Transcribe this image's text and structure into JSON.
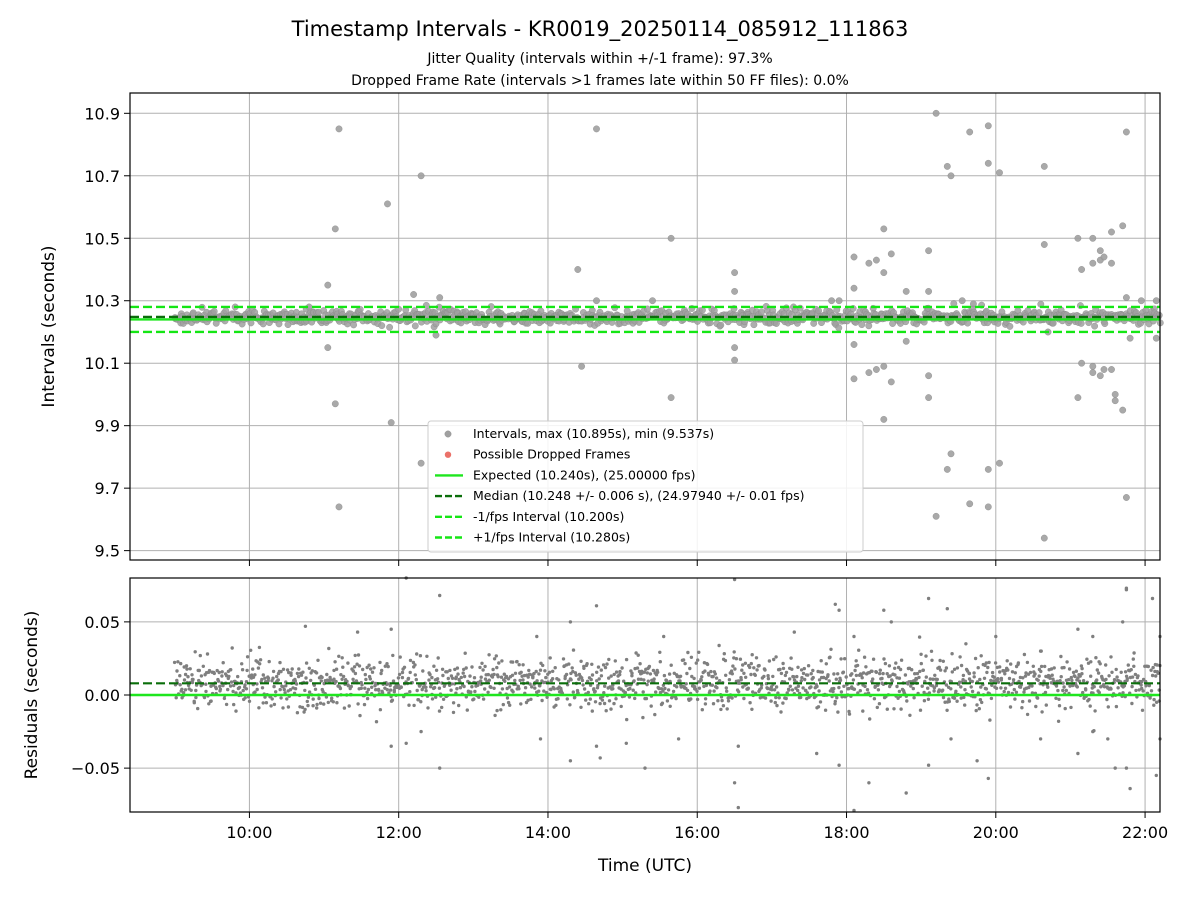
{
  "figure": {
    "title": "Timestamp Intervals - KR0019_20250114_085912_111863",
    "subtitle_1": "Jitter Quality (intervals within +/-1 frame): 97.3%",
    "subtitle_2": "Dropped Frame Rate (intervals >1 frames late within 50 FF files): 0.0%"
  },
  "colors": {
    "intervals": "#a0a0a0",
    "residuals": "#7f7f7f",
    "dropped": "#e8584f",
    "expected": "#1ee61e",
    "median": "#0a6e0a",
    "fps_interval": "#14e614",
    "grid": "#b0b0b0"
  },
  "chart_data": [
    {
      "type": "scatter",
      "panel": "top",
      "ylabel": "Intervals (seconds)",
      "xlabel": "",
      "xlim": [
        8.4,
        22.2
      ],
      "ylim": [
        9.47,
        10.965
      ],
      "xticks": [
        "10:00",
        "12:00",
        "14:00",
        "16:00",
        "18:00",
        "20:00",
        "22:00"
      ],
      "yticks": [
        "10.9",
        "10.7",
        "10.5",
        "10.3",
        "10.1",
        "9.9",
        "9.7",
        "9.5"
      ],
      "grid": true,
      "legend_position": "lower center",
      "legend": [
        "Intervals, max (10.895s), min (9.537s)",
        "Possible Dropped Frames",
        "Expected (10.240s), (25.00000 fps)",
        "Median (10.248 +/- 0.006 s), (24.97940 +/- 0.01 fps)",
        "-1/fps Interval (10.200s)",
        "+1/fps Interval (10.280s)"
      ],
      "expected": 10.24,
      "median": 10.248,
      "minus_interval": 10.2,
      "plus_interval": 10.28,
      "x_start": 9.0,
      "x_end": 22.2,
      "outliers": [
        [
          9.1,
          10.25
        ],
        [
          10.8,
          10.28
        ],
        [
          11.05,
          10.35
        ],
        [
          11.05,
          10.15
        ],
        [
          11.15,
          10.53
        ],
        [
          11.15,
          9.97
        ],
        [
          11.2,
          10.85
        ],
        [
          11.2,
          9.64
        ],
        [
          11.85,
          10.61
        ],
        [
          11.9,
          9.91
        ],
        [
          12.2,
          10.32
        ],
        [
          12.3,
          10.7
        ],
        [
          12.3,
          9.78
        ],
        [
          12.55,
          10.31
        ],
        [
          12.5,
          10.19
        ],
        [
          14.4,
          10.4
        ],
        [
          14.45,
          10.09
        ],
        [
          14.65,
          10.85
        ],
        [
          14.65,
          10.3
        ],
        [
          15.4,
          10.3
        ],
        [
          15.65,
          10.5
        ],
        [
          15.65,
          9.99
        ],
        [
          16.5,
          10.39
        ],
        [
          16.5,
          10.33
        ],
        [
          16.5,
          10.15
        ],
        [
          16.5,
          10.11
        ],
        [
          17.8,
          10.3
        ],
        [
          17.9,
          10.3
        ],
        [
          18.1,
          10.44
        ],
        [
          18.1,
          10.34
        ],
        [
          18.1,
          10.05
        ],
        [
          18.1,
          10.16
        ],
        [
          18.3,
          10.42
        ],
        [
          18.3,
          10.07
        ],
        [
          18.4,
          10.43
        ],
        [
          18.4,
          10.08
        ],
        [
          18.5,
          10.53
        ],
        [
          18.5,
          10.39
        ],
        [
          18.5,
          10.09
        ],
        [
          18.5,
          9.92
        ],
        [
          18.6,
          10.45
        ],
        [
          18.6,
          10.04
        ],
        [
          18.8,
          10.33
        ],
        [
          18.8,
          10.17
        ],
        [
          19.1,
          10.46
        ],
        [
          19.1,
          10.33
        ],
        [
          19.1,
          10.06
        ],
        [
          19.1,
          9.99
        ],
        [
          19.2,
          10.9
        ],
        [
          19.2,
          9.61
        ],
        [
          19.35,
          10.73
        ],
        [
          19.35,
          9.76
        ],
        [
          19.4,
          10.7
        ],
        [
          19.4,
          9.81
        ],
        [
          19.55,
          10.3
        ],
        [
          19.65,
          10.84
        ],
        [
          19.65,
          9.65
        ],
        [
          19.7,
          10.29
        ],
        [
          19.9,
          10.86
        ],
        [
          19.9,
          10.74
        ],
        [
          19.9,
          9.64
        ],
        [
          19.9,
          9.76
        ],
        [
          20.05,
          10.71
        ],
        [
          20.05,
          9.78
        ],
        [
          20.65,
          10.73
        ],
        [
          20.65,
          10.48
        ],
        [
          20.65,
          9.54
        ],
        [
          20.7,
          10.2
        ],
        [
          21.1,
          10.5
        ],
        [
          21.1,
          9.99
        ],
        [
          21.15,
          10.4
        ],
        [
          21.15,
          10.1
        ],
        [
          21.3,
          10.42
        ],
        [
          21.3,
          10.5
        ],
        [
          21.3,
          10.09
        ],
        [
          21.3,
          10.07
        ],
        [
          21.4,
          10.46
        ],
        [
          21.4,
          10.43
        ],
        [
          21.4,
          10.06
        ],
        [
          21.45,
          10.44
        ],
        [
          21.45,
          10.08
        ],
        [
          21.55,
          10.52
        ],
        [
          21.55,
          10.42
        ],
        [
          21.55,
          10.08
        ],
        [
          21.6,
          10.0
        ],
        [
          21.6,
          9.98
        ],
        [
          21.7,
          10.54
        ],
        [
          21.7,
          9.95
        ],
        [
          21.75,
          10.84
        ],
        [
          21.75,
          9.67
        ],
        [
          21.75,
          10.31
        ],
        [
          21.8,
          10.18
        ],
        [
          21.95,
          10.3
        ],
        [
          22.15,
          10.3
        ],
        [
          22.15,
          10.18
        ]
      ]
    },
    {
      "type": "scatter",
      "panel": "bottom",
      "ylabel": "Residuals (seconds)",
      "xlabel": "Time (UTC)",
      "xlim": [
        8.4,
        22.2
      ],
      "ylim": [
        -0.08,
        0.08
      ],
      "xticks": [
        "10:00",
        "12:00",
        "14:00",
        "16:00",
        "18:00",
        "20:00",
        "22:00"
      ],
      "yticks": [
        "0.05",
        "0.00",
        "−0.05"
      ],
      "grid": true,
      "expected": 0.0,
      "median": 0.008,
      "outliers": [
        [
          10.75,
          0.047
        ],
        [
          11.45,
          0.043
        ],
        [
          11.9,
          -0.035
        ],
        [
          11.9,
          0.045
        ],
        [
          12.1,
          0.08
        ],
        [
          12.1,
          -0.033
        ],
        [
          12.3,
          -0.025
        ],
        [
          12.55,
          0.068
        ],
        [
          12.55,
          -0.05
        ],
        [
          13.85,
          0.04
        ],
        [
          13.9,
          -0.03
        ],
        [
          14.3,
          0.05
        ],
        [
          14.3,
          -0.045
        ],
        [
          14.65,
          0.061
        ],
        [
          14.65,
          -0.035
        ],
        [
          14.7,
          -0.043
        ],
        [
          15.05,
          -0.033
        ],
        [
          15.3,
          -0.05
        ],
        [
          15.55,
          0.04
        ],
        [
          15.75,
          -0.03
        ],
        [
          16.5,
          0.079
        ],
        [
          16.5,
          -0.06
        ],
        [
          16.55,
          -0.077
        ],
        [
          16.55,
          -0.035
        ],
        [
          17.3,
          0.043
        ],
        [
          17.6,
          -0.04
        ],
        [
          17.85,
          0.062
        ],
        [
          17.9,
          -0.048
        ],
        [
          17.9,
          0.058
        ],
        [
          18.1,
          0.04
        ],
        [
          18.1,
          -0.079
        ],
        [
          18.3,
          -0.06
        ],
        [
          18.5,
          0.058
        ],
        [
          18.6,
          0.05
        ],
        [
          18.8,
          -0.067
        ],
        [
          19.1,
          0.066
        ],
        [
          19.1,
          -0.048
        ],
        [
          19.35,
          0.059
        ],
        [
          19.4,
          -0.03
        ],
        [
          19.6,
          0.035
        ],
        [
          19.75,
          -0.045
        ],
        [
          19.9,
          -0.057
        ],
        [
          20.0,
          0.04
        ],
        [
          20.6,
          0.03
        ],
        [
          20.6,
          -0.03
        ],
        [
          21.1,
          0.045
        ],
        [
          21.1,
          -0.04
        ],
        [
          21.3,
          0.04
        ],
        [
          21.3,
          -0.025
        ],
        [
          21.5,
          -0.03
        ],
        [
          21.6,
          -0.05
        ],
        [
          21.7,
          0.05
        ],
        [
          21.75,
          0.072
        ],
        [
          21.75,
          0.073
        ],
        [
          21.75,
          -0.05
        ],
        [
          21.8,
          -0.064
        ],
        [
          22.1,
          0.066
        ],
        [
          22.15,
          -0.055
        ],
        [
          22.2,
          0.04
        ],
        [
          22.2,
          -0.03
        ]
      ]
    }
  ]
}
